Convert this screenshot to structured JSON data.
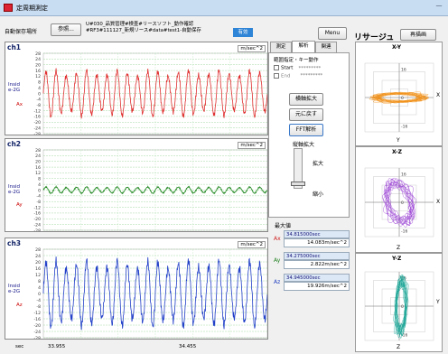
{
  "window": {
    "title": "定周期測定"
  },
  "toolbar": {
    "save_dest_label": "自動保存場所",
    "browse_button": "参照...",
    "path_line1": "U#030_品質管理#検査#リースソフト_動作確認",
    "path_line2": "#RF3#111127_新規リース#data#test1-自動保存",
    "status_badge": "有効",
    "menu_button": "Menu"
  },
  "channels": [
    {
      "label": "ch1",
      "name_line1": "Insid",
      "name_line2": "e-2G",
      "axis": "Ax",
      "unit": "m/sec^2",
      "yticks": [
        "28",
        "24",
        "20",
        "16",
        "12",
        "8",
        "4",
        "0",
        "-4",
        "-8",
        "-12",
        "-16",
        "-20",
        "-24",
        "-28"
      ],
      "color": "#e03030"
    },
    {
      "label": "ch2",
      "name_line1": "Insid",
      "name_line2": "e-2G",
      "axis": "Ay",
      "unit": "m/sec^2",
      "yticks": [
        "28",
        "24",
        "20",
        "16",
        "12",
        "8",
        "4",
        "0",
        "-4",
        "-8",
        "-12",
        "-16",
        "-20",
        "-24",
        "-28"
      ],
      "color": "#208820"
    },
    {
      "label": "ch3",
      "name_line1": "Insid",
      "name_line2": "e-2G",
      "axis": "Az",
      "unit": "m/sec^2",
      "yticks": [
        "28",
        "24",
        "20",
        "16",
        "12",
        "8",
        "4",
        "0",
        "-4",
        "-8",
        "-12",
        "-16",
        "-20",
        "-24",
        "-28"
      ],
      "color": "#2240c8"
    }
  ],
  "xaxis": {
    "unit": "sec",
    "tick1": "33.955",
    "tick2": "34.455"
  },
  "tabs": [
    "測定",
    "解析",
    "関連"
  ],
  "side": {
    "range_title": "範囲指定・キー動作",
    "start_label": "Start",
    "start_value": "*********",
    "end_label": "End",
    "end_value": "*********",
    "zoom_h_button": "横軸拡大",
    "restore_button": "元に戻す",
    "fft_button": "FFT解析",
    "zoom_v_label": "縦軸拡大",
    "zoom_in_label": "拡大",
    "zoom_out_label": "縮小"
  },
  "max": {
    "title": "最大値",
    "rows": [
      {
        "axis": "Ax",
        "color": "#d02020",
        "time": "34.815000sec",
        "value": "14.083m/sec^2"
      },
      {
        "axis": "Ay",
        "color": "#208020",
        "time": "34.275000sec",
        "value": "2.822m/sec^2"
      },
      {
        "axis": "Az",
        "color": "#2040c0",
        "time": "34.945000sec",
        "value": "19.926m/sec^2"
      }
    ]
  },
  "lissajous": {
    "title": "リサージュ",
    "redraw_button": "再描画",
    "plots": [
      {
        "title": "X-Y",
        "h_axis": "X",
        "v_axis": "Y",
        "color": "#f08c10",
        "ticks": [
          "16",
          "0",
          "-16"
        ]
      },
      {
        "title": "X-Z",
        "h_axis": "X",
        "v_axis": "Z",
        "color": "#9030d0",
        "ticks": [
          "16",
          "0",
          "-16"
        ]
      },
      {
        "title": "Y-Z",
        "h_axis": "Y",
        "v_axis": "Z",
        "color": "#10a090",
        "ticks": [
          "16",
          "0",
          "-16"
        ]
      }
    ]
  }
}
